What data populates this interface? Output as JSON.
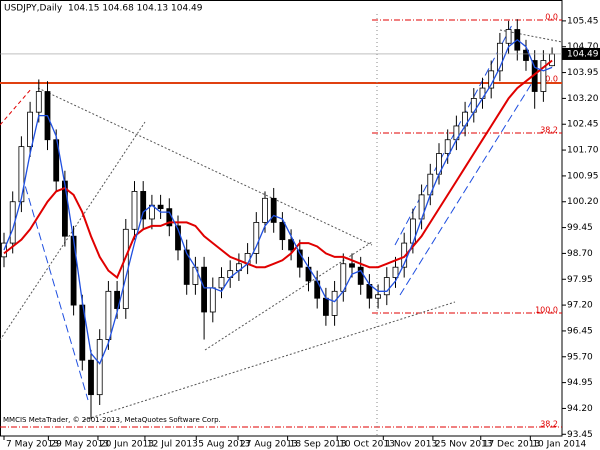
{
  "chart_data": {
    "type": "candlestick",
    "title": "USDJPY,Daily  104.15 104.68 104.13 104.49",
    "watermark": "MMCIS MetaTrader, © 2001-2013, MetaQuotes Software Corp.",
    "open": [
      98.6,
      99.0,
      100.2,
      101.8,
      102.8,
      103.4,
      102.0,
      100.8,
      99.2,
      97.2,
      95.6,
      94.6,
      96.2,
      97.6,
      97.1,
      99.4,
      100.5,
      99.7,
      100.1,
      100.0,
      99.5,
      98.8,
      97.8,
      98.3,
      97.0,
      97.7,
      98.0,
      98.2,
      98.4,
      98.7,
      99.6,
      100.3,
      99.6,
      99.1,
      98.8,
      98.3,
      97.9,
      97.4,
      96.9,
      97.6,
      98.4,
      98.3,
      97.8,
      97.4,
      97.5,
      98.0,
      98.3,
      99.0,
      99.7,
      100.4,
      101.0,
      101.6,
      102.0,
      102.4,
      102.8,
      103.2,
      103.5,
      104.0,
      104.8,
      105.2,
      104.6,
      104.3,
      103.4,
      104.15
    ],
    "high": [
      99.3,
      100.5,
      102.1,
      103.1,
      103.75,
      103.7,
      102.3,
      101.1,
      99.5,
      97.5,
      95.9,
      96.5,
      97.9,
      97.9,
      99.7,
      100.8,
      100.8,
      100.4,
      100.4,
      100.3,
      99.8,
      99.1,
      98.6,
      98.6,
      98.0,
      98.3,
      98.5,
      98.7,
      99.0,
      99.9,
      100.5,
      100.6,
      99.9,
      99.4,
      99.1,
      98.6,
      98.2,
      97.7,
      97.9,
      98.7,
      98.7,
      98.6,
      98.1,
      97.8,
      98.3,
      98.6,
      99.3,
      100.0,
      100.7,
      101.3,
      101.9,
      102.3,
      102.7,
      103.1,
      103.5,
      103.8,
      104.3,
      105.1,
      105.45,
      105.5,
      104.9,
      104.6,
      104.6,
      104.68
    ],
    "low": [
      98.3,
      98.7,
      99.9,
      101.5,
      102.5,
      101.7,
      100.5,
      98.9,
      96.9,
      95.3,
      93.9,
      94.3,
      95.9,
      96.8,
      96.8,
      99.1,
      99.4,
      99.4,
      99.7,
      99.2,
      98.5,
      97.5,
      97.5,
      96.2,
      96.7,
      97.4,
      97.7,
      97.9,
      98.1,
      98.4,
      99.3,
      99.3,
      98.8,
      98.5,
      98.0,
      97.6,
      97.1,
      96.6,
      96.6,
      97.3,
      98.0,
      97.5,
      97.1,
      97.1,
      97.2,
      97.7,
      98.0,
      98.7,
      99.4,
      100.1,
      100.7,
      101.3,
      101.7,
      102.1,
      102.5,
      102.9,
      103.2,
      103.7,
      104.5,
      104.3,
      104.0,
      102.9,
      103.1,
      104.13
    ],
    "close": [
      99.0,
      100.2,
      101.8,
      102.8,
      103.4,
      102.0,
      100.8,
      99.2,
      97.2,
      95.6,
      94.6,
      96.2,
      97.6,
      97.1,
      99.4,
      100.5,
      99.7,
      100.1,
      100.0,
      99.5,
      98.8,
      97.8,
      98.3,
      97.0,
      97.7,
      98.0,
      98.2,
      98.4,
      98.7,
      99.6,
      100.3,
      99.6,
      99.1,
      98.8,
      98.3,
      97.9,
      97.4,
      96.9,
      97.6,
      98.4,
      98.3,
      97.8,
      97.4,
      97.5,
      98.0,
      98.3,
      99.0,
      99.7,
      100.4,
      101.0,
      101.6,
      102.0,
      102.4,
      102.8,
      103.2,
      103.5,
      104.0,
      104.8,
      105.2,
      104.6,
      104.3,
      103.4,
      104.3,
      104.49
    ],
    "moving_averages": [
      {
        "color": "#e00000",
        "values": [
          98.7,
          98.9,
          99.1,
          99.4,
          99.8,
          100.2,
          100.5,
          100.6,
          100.4,
          99.9,
          99.2,
          98.6,
          98.2,
          98.0,
          98.6,
          99.2,
          99.4,
          99.5,
          99.5,
          99.6,
          99.6,
          99.6,
          99.5,
          99.2,
          99.0,
          98.8,
          98.6,
          98.5,
          98.4,
          98.3,
          98.3,
          98.4,
          98.5,
          98.7,
          99.0,
          99.0,
          98.9,
          98.7,
          98.6,
          98.6,
          98.5,
          98.4,
          98.3,
          98.3,
          98.4,
          98.5,
          98.6,
          98.9,
          99.2,
          99.6,
          100.0,
          100.4,
          100.8,
          101.2,
          101.6,
          102.0,
          102.4,
          102.8,
          103.2,
          103.5,
          103.7,
          103.9,
          104.1,
          104.3
        ]
      },
      {
        "color": "#1f4fe0",
        "values": [
          98.8,
          99.4,
          100.3,
          101.6,
          102.7,
          102.7,
          102.1,
          100.7,
          99.1,
          97.3,
          95.8,
          95.5,
          96.1,
          97.0,
          98.0,
          99.0,
          99.9,
          100.1,
          99.9,
          99.9,
          99.4,
          98.7,
          98.3,
          97.7,
          97.7,
          97.6,
          98.0,
          98.2,
          98.4,
          98.9,
          99.5,
          99.8,
          99.7,
          99.2,
          98.7,
          98.3,
          97.9,
          97.4,
          97.3,
          97.6,
          98.1,
          98.2,
          97.8,
          97.6,
          97.6,
          97.9,
          98.4,
          99.0,
          99.7,
          100.4,
          101.0,
          101.5,
          102.0,
          102.4,
          102.8,
          103.2,
          103.6,
          104.1,
          104.7,
          104.9,
          104.7,
          104.1,
          104.0,
          104.1
        ]
      }
    ],
    "current_price": 104.49,
    "xlim": [
      -0.46,
      64.14
    ],
    "xticks": [
      {
        "value": 0,
        "label": "7 May 2013"
      },
      {
        "value": 5.1,
        "label": "29 May 2013"
      },
      {
        "value": 10.8,
        "label": "20 Jun 2013"
      },
      {
        "value": 16.2,
        "label": "12 Jul 2013"
      },
      {
        "value": 22.1,
        "label": "5 Aug 2013"
      },
      {
        "value": 26.9,
        "label": "27 Aug 2013"
      },
      {
        "value": 32.6,
        "label": "18 Sep 2013"
      },
      {
        "value": 38.3,
        "label": "10 Oct 2013"
      },
      {
        "value": 43.6,
        "label": "1 Nov 2013"
      },
      {
        "value": 49.3,
        "label": "25 Nov 2013"
      },
      {
        "value": 54.8,
        "label": "17 Dec 2013"
      },
      {
        "value": 60.5,
        "label": "10 Jan 2014"
      }
    ],
    "ylim": [
      93.4,
      105.65
    ],
    "yticks": [
      105.45,
      {
        "value": 104.7,
        "label": "104.70"
      },
      103.95,
      {
        "value": 103.2,
        "label": "103.20"
      },
      102.45,
      {
        "value": 101.7,
        "label": "101.70"
      },
      100.95,
      {
        "value": 100.2,
        "label": "100.20"
      },
      99.45,
      {
        "value": 98.7,
        "label": "98.70"
      },
      97.95,
      {
        "value": 97.2,
        "label": "97.20"
      },
      96.45,
      {
        "value": 95.7,
        "label": "95.70"
      },
      94.95,
      {
        "value": 94.2,
        "label": "94.20"
      },
      93.45
    ],
    "fibo_labels": [
      "0.0",
      "0.0",
      "38.2",
      "100.0",
      "38.2"
    ]
  }
}
